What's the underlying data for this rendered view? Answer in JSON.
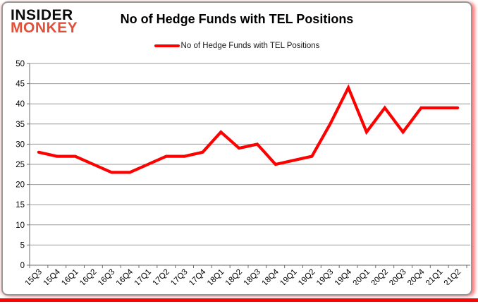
{
  "brand": {
    "line1": "INSIDER",
    "line2": "MONKEY",
    "line1_color": "#0c0c0c",
    "line2_color": "#e2503a"
  },
  "header": {
    "title": "No of Hedge Funds with TEL Positions"
  },
  "legend": {
    "label": "No of Hedge Funds with TEL Positions",
    "swatch_color": "#fe0000"
  },
  "chart_data": {
    "type": "line",
    "title": "No of Hedge Funds with TEL Positions",
    "categories": [
      "15Q3",
      "15Q4",
      "16Q1",
      "16Q2",
      "16Q3",
      "16Q4",
      "17Q1",
      "17Q2",
      "17Q3",
      "17Q4",
      "18Q1",
      "18Q2",
      "18Q3",
      "18Q4",
      "19Q1",
      "19Q2",
      "19Q3",
      "19Q4",
      "20Q1",
      "20Q2",
      "20Q3",
      "20Q4",
      "21Q1",
      "21Q2"
    ],
    "series": [
      {
        "name": "No of Hedge Funds with TEL Positions",
        "color": "#fe0000",
        "values": [
          28,
          27,
          27,
          25,
          23,
          23,
          25,
          27,
          27,
          28,
          33,
          29,
          30,
          25,
          26,
          27,
          35,
          44,
          33,
          39,
          33,
          39,
          39,
          39
        ]
      }
    ],
    "xlabel": "",
    "ylabel": "",
    "ylim": [
      0,
      50
    ],
    "ytick_step": 5,
    "grid": true,
    "legend_position": "top",
    "grid_color": "#999999",
    "axis_color": "#6e6e6e",
    "tick_label_color": "#000000"
  }
}
